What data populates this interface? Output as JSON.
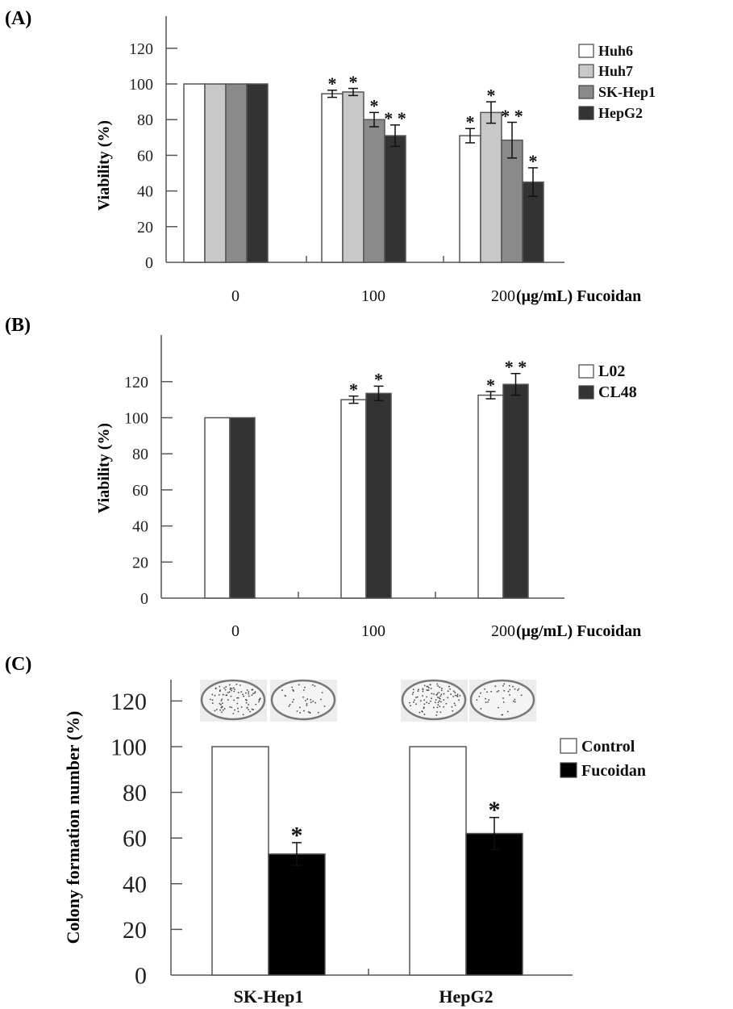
{
  "chart_data": [
    {
      "panel_label": "(A)",
      "type": "bar",
      "ylabel": "Viability (%)",
      "xlabel": "(μg/mL) Fucoidan",
      "categories": [
        "0",
        "100",
        "200"
      ],
      "ylim": [
        0,
        120
      ],
      "yticks": [
        "0",
        "20",
        "40",
        "60",
        "80",
        "100",
        "120"
      ],
      "grid": false,
      "legend_position": "top-right",
      "series": [
        {
          "name": "Huh6",
          "color": "#ffffff",
          "values": [
            100,
            94.5,
            71
          ],
          "errors": [
            0,
            2,
            4
          ],
          "stars": [
            "",
            "*",
            "*"
          ]
        },
        {
          "name": "Huh7",
          "color": "#c8c8c8",
          "values": [
            100,
            95.5,
            84
          ],
          "errors": [
            0,
            2,
            6
          ],
          "stars": [
            "",
            "*",
            "*"
          ]
        },
        {
          "name": "SK-Hep1",
          "color": "#8a8a8a",
          "values": [
            100,
            80,
            68.5
          ],
          "errors": [
            0,
            4,
            10
          ],
          "stars": [
            "",
            "*",
            "**"
          ]
        },
        {
          "name": "HepG2",
          "color": "#333333",
          "values": [
            100,
            71,
            45
          ],
          "errors": [
            0,
            6,
            8
          ],
          "stars": [
            "",
            "**",
            "*"
          ]
        }
      ]
    },
    {
      "panel_label": "(B)",
      "type": "bar",
      "ylabel": "Viability (%)",
      "xlabel": "(μg/mL) Fucoidan",
      "categories": [
        "0",
        "100",
        "200"
      ],
      "ylim": [
        0,
        120
      ],
      "yticks": [
        "0",
        "20",
        "40",
        "60",
        "80",
        "100",
        "120"
      ],
      "grid": false,
      "legend_position": "top-right",
      "series": [
        {
          "name": "L02",
          "color": "#ffffff",
          "values": [
            100,
            110,
            112.5
          ],
          "errors": [
            0,
            2,
            2
          ],
          "stars": [
            "",
            "*",
            "*"
          ]
        },
        {
          "name": "CL48",
          "color": "#333333",
          "values": [
            100,
            113.5,
            118.5
          ],
          "errors": [
            0,
            4,
            6
          ],
          "stars": [
            "",
            "*",
            "**"
          ]
        }
      ]
    },
    {
      "panel_label": "(C)",
      "type": "bar",
      "ylabel": "Colony formation number (%)",
      "xlabel": "",
      "categories": [
        "SK-Hep1",
        "HepG2"
      ],
      "ylim": [
        0,
        120
      ],
      "yticks": [
        "0",
        "20",
        "40",
        "60",
        "80",
        "100",
        "120"
      ],
      "grid": false,
      "legend_position": "right",
      "series": [
        {
          "name": "Control",
          "color": "#ffffff",
          "values": [
            100,
            100
          ],
          "errors": [
            0,
            0
          ],
          "stars": [
            "",
            ""
          ]
        },
        {
          "name": "Fucoidan",
          "color": "#000000",
          "values": [
            53,
            62
          ],
          "errors": [
            5,
            7
          ],
          "stars": [
            "*",
            "*"
          ]
        }
      ]
    }
  ]
}
